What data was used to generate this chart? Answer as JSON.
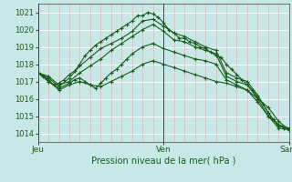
{
  "background_color": "#c8e8e8",
  "plot_bg_color": "#c8e8e8",
  "grid_color_v": "#ffaaaa",
  "grid_color_h": "#ffffff",
  "line_color": "#1a5c1a",
  "marker_color": "#1a5c1a",
  "title": "Pression niveau de la mer( hPa )",
  "ylim": [
    1013.5,
    1021.5
  ],
  "yticks": [
    1014,
    1015,
    1016,
    1017,
    1018,
    1019,
    1020,
    1021
  ],
  "day_labels": [
    "Jeu",
    "Ven",
    "Sam"
  ],
  "day_positions": [
    0,
    48,
    96
  ],
  "total_hours": 96,
  "series": [
    {
      "x": [
        0,
        2,
        4,
        6,
        8,
        10,
        12,
        14,
        16,
        18,
        20,
        22,
        24,
        26,
        28,
        30,
        32,
        34,
        36,
        38,
        40,
        42,
        44,
        46,
        48,
        50,
        52,
        54,
        56,
        58,
        60,
        62,
        64,
        66,
        68,
        70,
        72,
        74,
        76,
        78,
        80,
        82,
        84,
        86,
        88,
        90,
        92,
        94,
        96
      ],
      "y": [
        1017.5,
        1017.3,
        1017.0,
        1016.8,
        1016.9,
        1017.1,
        1017.4,
        1017.6,
        1018.0,
        1018.5,
        1018.8,
        1019.1,
        1019.3,
        1019.5,
        1019.7,
        1019.9,
        1020.1,
        1020.3,
        1020.5,
        1020.8,
        1020.8,
        1021.0,
        1020.9,
        1020.7,
        1020.4,
        1020.0,
        1019.8,
        1019.5,
        1019.5,
        1019.3,
        1019.2,
        1019.0,
        1018.9,
        1018.7,
        1018.5,
        1018.4,
        1018.0,
        1017.7,
        1017.4,
        1017.1,
        1016.8,
        1016.5,
        1016.1,
        1015.7,
        1015.2,
        1014.8,
        1014.5,
        1014.3,
        1014.2
      ]
    },
    {
      "x": [
        0,
        4,
        8,
        12,
        16,
        20,
        24,
        28,
        32,
        36,
        40,
        44,
        48,
        52,
        56,
        60,
        64,
        68,
        72,
        76,
        80,
        84,
        88,
        92,
        96
      ],
      "y": [
        1017.5,
        1017.2,
        1016.7,
        1017.2,
        1017.9,
        1018.4,
        1018.9,
        1019.2,
        1019.5,
        1019.9,
        1020.5,
        1020.6,
        1020.2,
        1019.8,
        1019.6,
        1019.3,
        1019.0,
        1018.8,
        1017.5,
        1017.2,
        1017.0,
        1016.2,
        1015.2,
        1014.4,
        1014.3
      ]
    },
    {
      "x": [
        0,
        4,
        8,
        12,
        16,
        20,
        24,
        28,
        32,
        36,
        40,
        44,
        48,
        52,
        56,
        60,
        64,
        68,
        72,
        76,
        80,
        84,
        88,
        92,
        96
      ],
      "y": [
        1017.5,
        1017.3,
        1016.8,
        1017.0,
        1017.5,
        1017.9,
        1018.3,
        1018.8,
        1019.2,
        1019.6,
        1020.0,
        1020.3,
        1019.9,
        1019.4,
        1019.3,
        1019.0,
        1018.8,
        1018.6,
        1017.3,
        1017.0,
        1016.8,
        1016.0,
        1015.0,
        1014.5,
        1014.3
      ]
    },
    {
      "x": [
        0,
        4,
        8,
        12,
        14,
        16,
        18,
        20,
        22,
        24,
        26,
        28,
        30,
        32,
        34,
        36,
        40,
        44,
        48,
        52,
        56,
        60,
        64,
        68,
        72,
        76,
        80,
        84,
        88,
        92,
        96
      ],
      "y": [
        1017.5,
        1017.0,
        1016.6,
        1016.9,
        1017.1,
        1017.2,
        1017.0,
        1016.8,
        1016.6,
        1016.9,
        1017.2,
        1017.5,
        1017.7,
        1018.0,
        1018.3,
        1018.6,
        1019.0,
        1019.2,
        1018.9,
        1018.7,
        1018.5,
        1018.3,
        1018.2,
        1018.0,
        1017.1,
        1016.8,
        1016.5,
        1015.8,
        1015.0,
        1014.3,
        1014.2
      ]
    },
    {
      "x": [
        0,
        4,
        8,
        12,
        16,
        20,
        24,
        28,
        32,
        36,
        40,
        44,
        48,
        52,
        56,
        60,
        64,
        68,
        72,
        76,
        80,
        84,
        88,
        92,
        96
      ],
      "y": [
        1017.5,
        1017.1,
        1016.5,
        1016.8,
        1017.0,
        1016.8,
        1016.7,
        1017.0,
        1017.3,
        1017.6,
        1018.0,
        1018.2,
        1018.0,
        1017.8,
        1017.6,
        1017.4,
        1017.2,
        1017.0,
        1016.9,
        1016.7,
        1016.5,
        1016.0,
        1015.5,
        1014.7,
        1014.2
      ]
    }
  ]
}
